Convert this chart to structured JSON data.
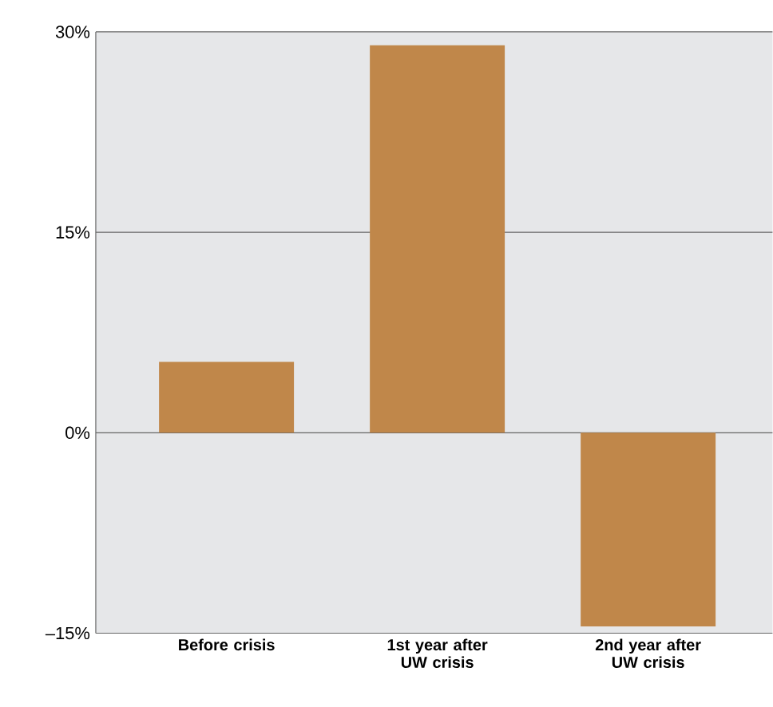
{
  "chart_data": {
    "type": "bar",
    "categories": [
      "Before crisis",
      "1st year after UW crisis",
      "2nd year after UW crisis"
    ],
    "values": [
      5.3,
      29.0,
      -14.5
    ],
    "color": "#c0874a",
    "ylim": [
      -15,
      30
    ],
    "yticks": [
      {
        "value": -15,
        "label": "–15%"
      },
      {
        "value": 0,
        "label": "0%"
      },
      {
        "value": 15,
        "label": "15%"
      },
      {
        "value": 30,
        "label": "30%"
      }
    ],
    "grid": "y"
  }
}
